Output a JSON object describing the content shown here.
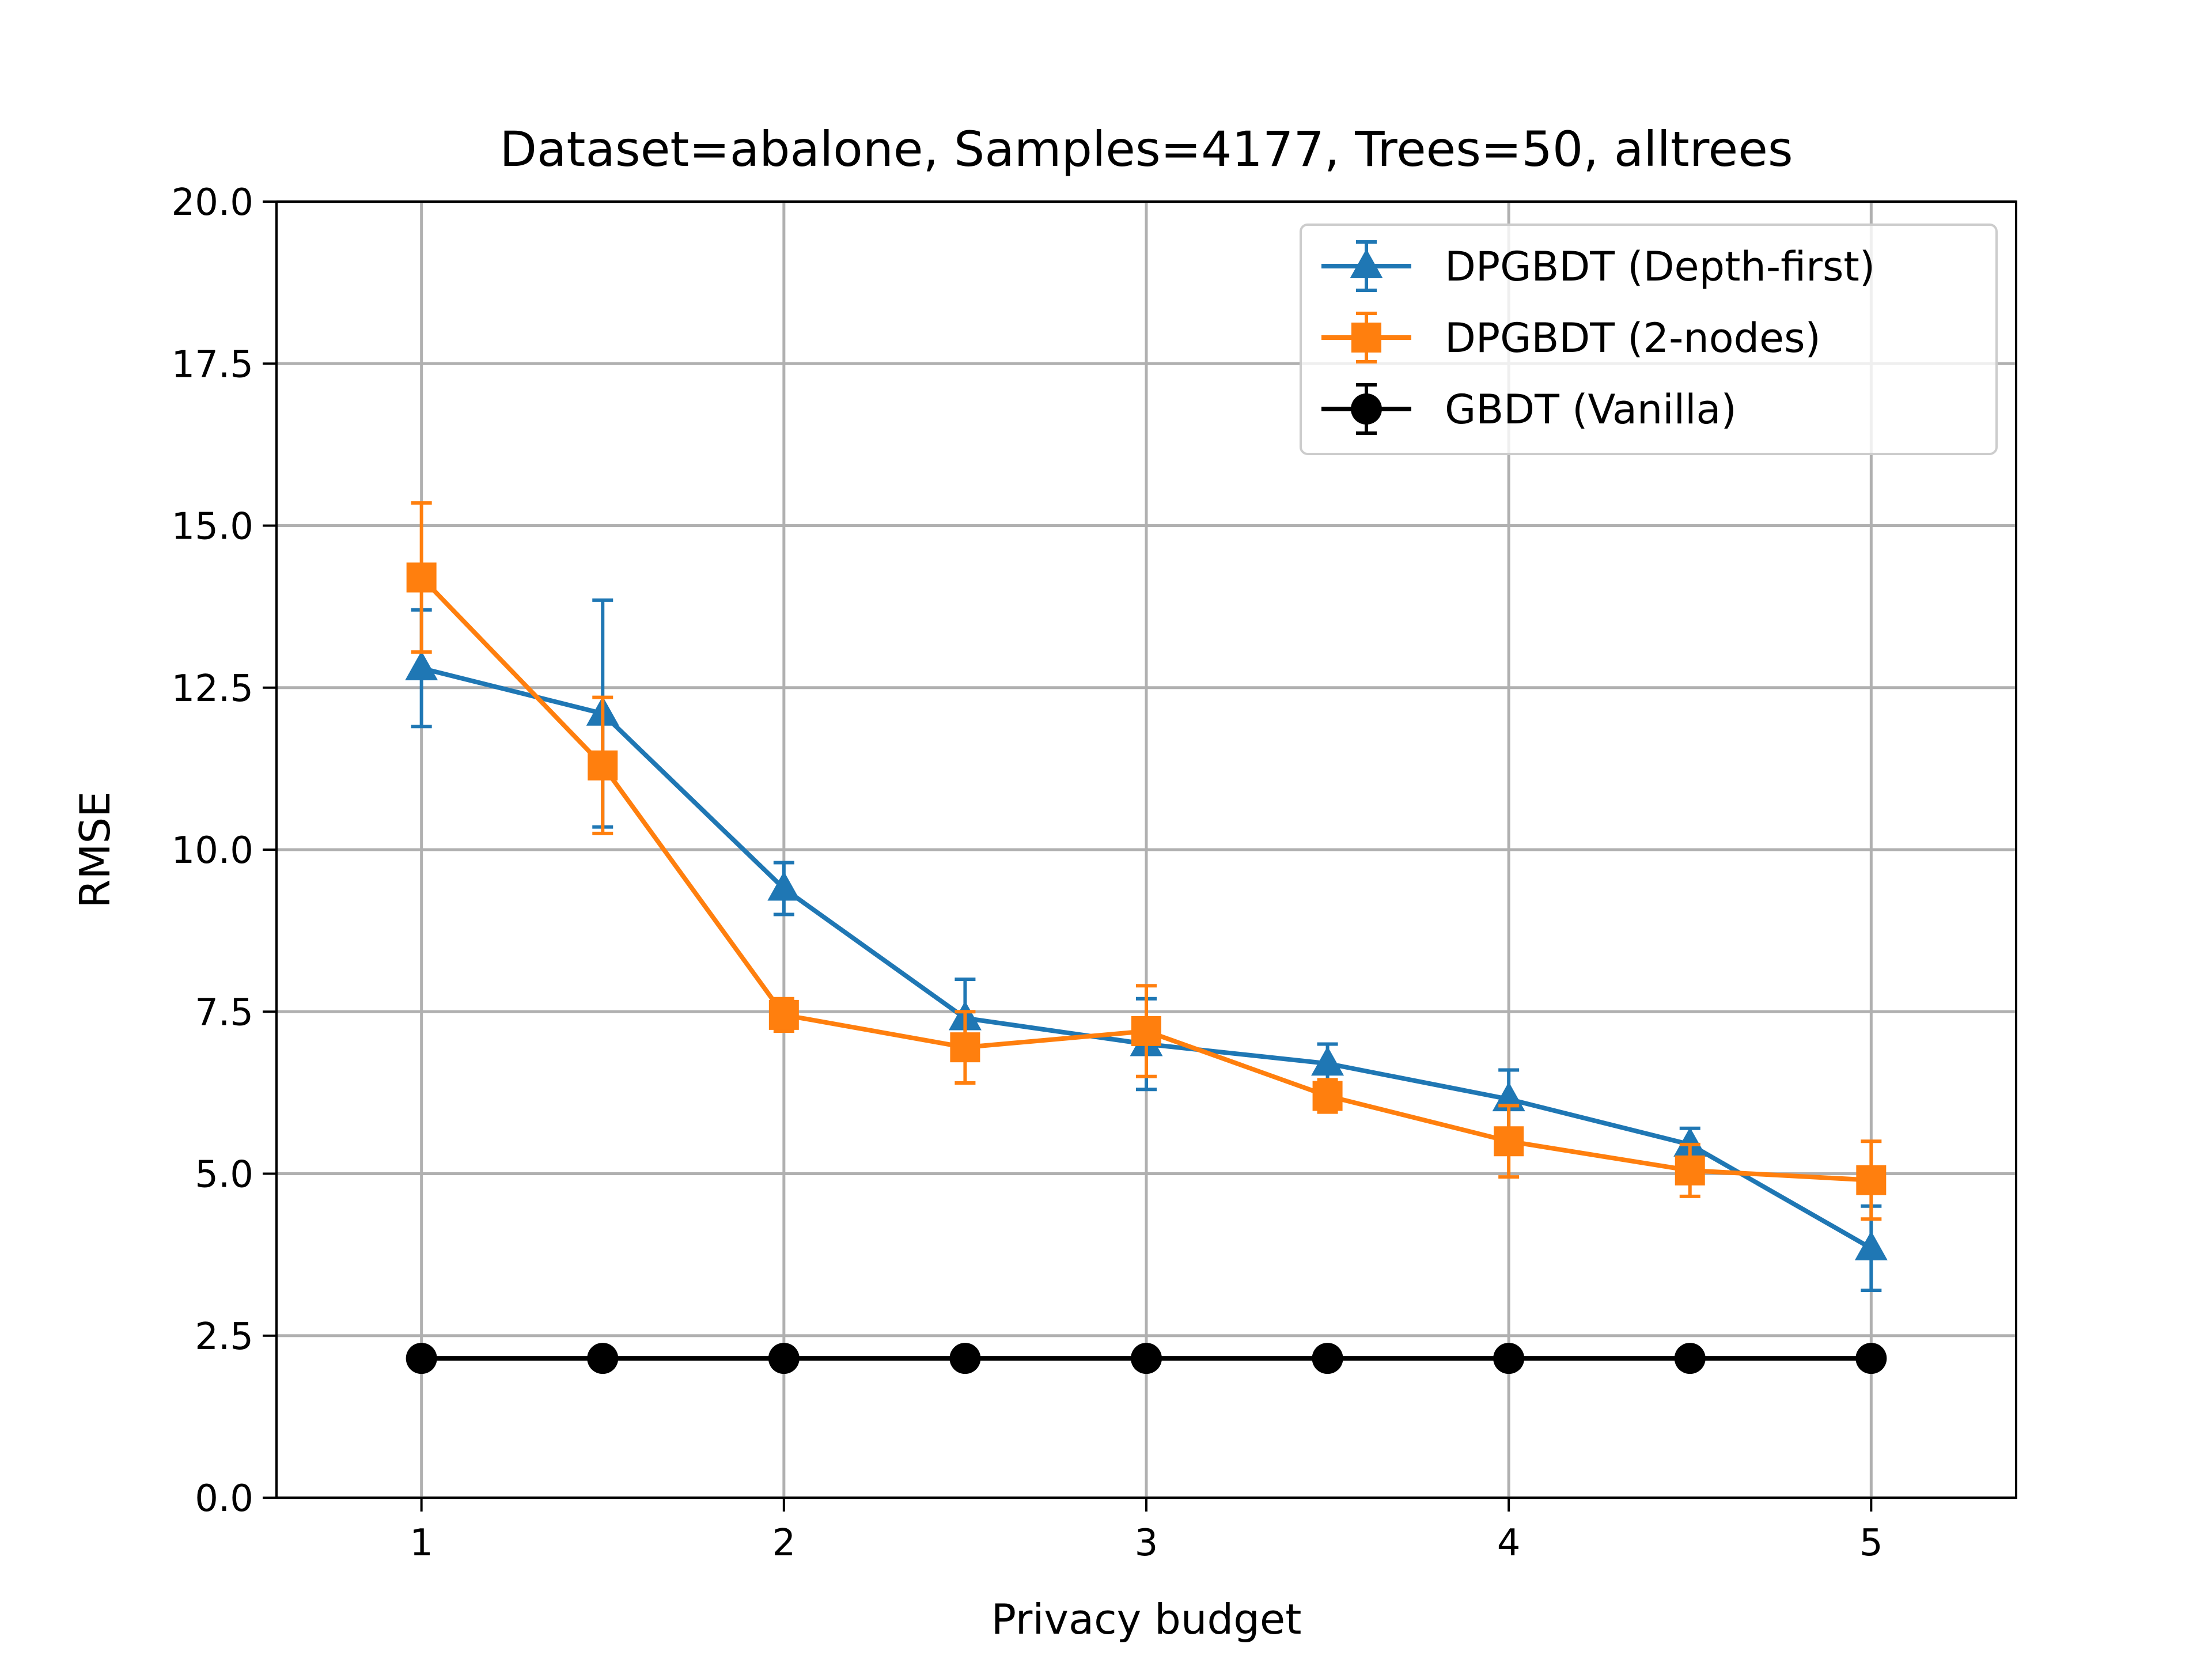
{
  "chart_data": {
    "type": "line",
    "title": "Dataset=abalone, Samples=4177, Trees=50, alltrees",
    "xlabel": "Privacy budget",
    "ylabel": "RMSE",
    "xlim": [
      0.6,
      5.4
    ],
    "ylim": [
      0,
      20
    ],
    "xticks": [
      1,
      2,
      3,
      4,
      5
    ],
    "xtick_labels": [
      "1",
      "2",
      "3",
      "4",
      "5"
    ],
    "yticks": [
      0,
      2.5,
      5,
      7.5,
      10,
      12.5,
      15,
      17.5,
      20
    ],
    "ytick_labels": [
      "0.0",
      "2.5",
      "5.0",
      "7.5",
      "10.0",
      "12.5",
      "15.0",
      "17.5",
      "20.0"
    ],
    "grid": true,
    "legend_position": "top-right",
    "x": [
      1,
      1.5,
      2,
      2.5,
      3,
      3.5,
      4,
      4.5,
      5
    ],
    "series": [
      {
        "name": "DPGBDT (Depth-first)",
        "color": "#1f77b4",
        "marker": "triangle",
        "values": [
          12.8,
          12.1,
          9.4,
          7.4,
          7.0,
          6.7,
          6.15,
          5.45,
          3.85
        ],
        "errors": [
          0.9,
          1.75,
          0.4,
          0.6,
          0.7,
          0.3,
          0.45,
          0.25,
          0.65
        ]
      },
      {
        "name": "DPGBDT (2-nodes)",
        "color": "#ff7f0e",
        "marker": "square",
        "values": [
          14.2,
          11.3,
          7.45,
          6.95,
          7.2,
          6.2,
          5.5,
          5.05,
          4.9
        ],
        "errors": [
          1.15,
          1.05,
          0.25,
          0.55,
          0.7,
          0.25,
          0.55,
          0.4,
          0.6
        ]
      },
      {
        "name": "GBDT (Vanilla)",
        "color": "#000000",
        "marker": "circle",
        "values": [
          2.15,
          2.15,
          2.15,
          2.15,
          2.15,
          2.15,
          2.15,
          2.15,
          2.15
        ],
        "errors": [
          0,
          0,
          0,
          0,
          0,
          0,
          0,
          0,
          0
        ]
      }
    ]
  }
}
